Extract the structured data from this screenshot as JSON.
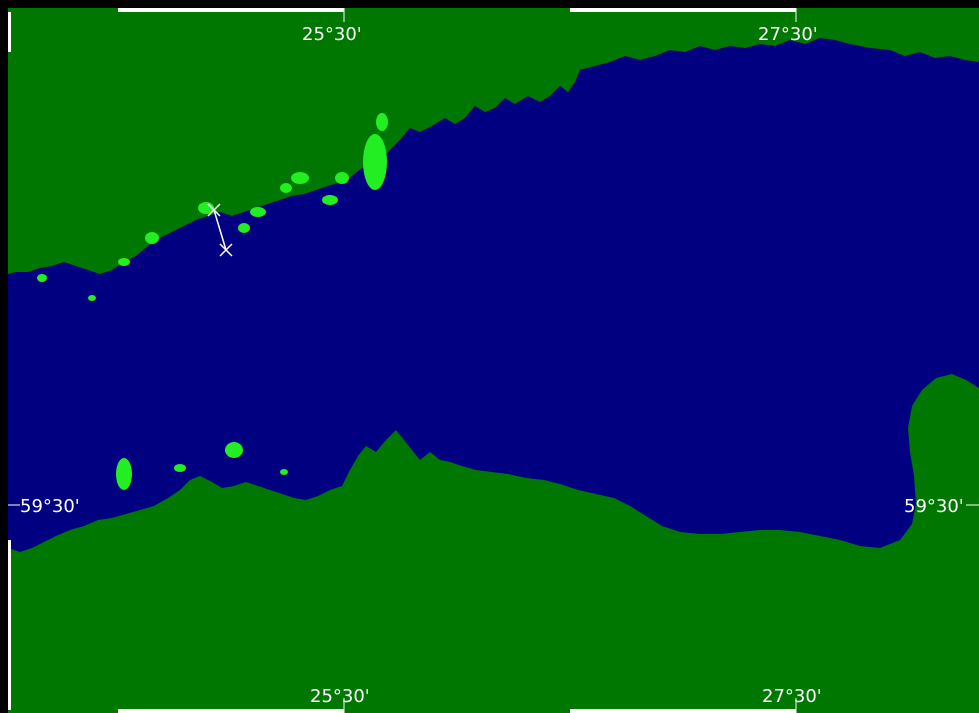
{
  "map": {
    "colors": {
      "frame": "#000000",
      "sea": "#000080",
      "land": "#007700",
      "islands": "#22ee22",
      "route": "#ffffff",
      "label": "#ffffff"
    },
    "longitude_labels": {
      "top": [
        "25°30'",
        "27°30'"
      ],
      "bottom": [
        "25°30'",
        "27°30'"
      ]
    },
    "latitude_labels": {
      "left": "59°30'",
      "right": "59°30'"
    },
    "route_markers": [
      "x-marker-start",
      "x-marker-end"
    ]
  }
}
